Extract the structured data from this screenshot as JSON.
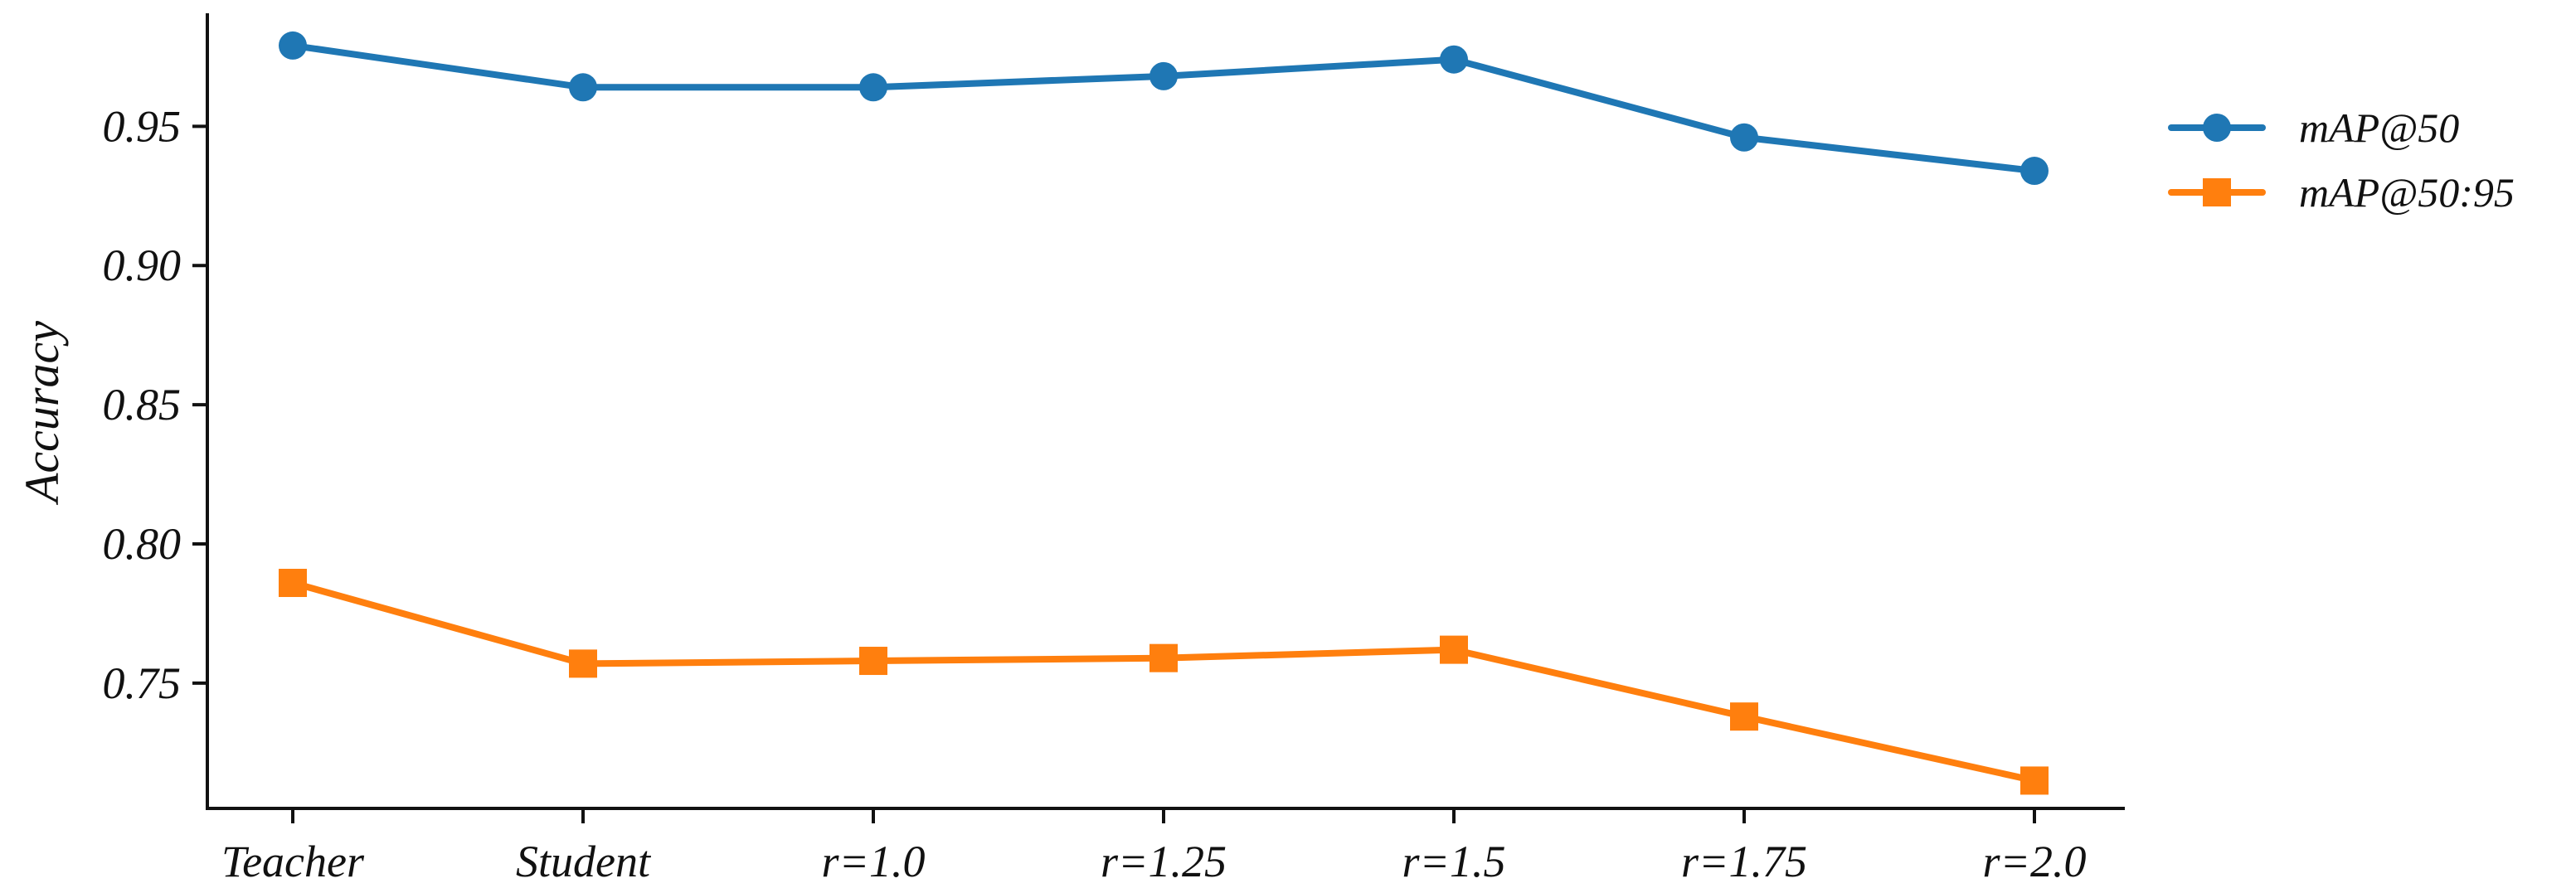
{
  "chart_data": {
    "type": "line",
    "title": "",
    "xlabel": "",
    "ylabel": "Accuracy",
    "categories": [
      "Teacher",
      "Student",
      "r=1.0",
      "r=1.25",
      "r=1.5",
      "r=1.75",
      "r=2.0"
    ],
    "yticks": [
      "0.75",
      "0.80",
      "0.85",
      "0.90",
      "0.95"
    ],
    "ylim": [
      0.705,
      0.99
    ],
    "grid": false,
    "legend_position": "top-right",
    "series": [
      {
        "name": "mAP@50",
        "marker": "circle",
        "color": "#1f77b4",
        "values": [
          0.979,
          0.964,
          0.964,
          0.968,
          0.974,
          0.946,
          0.934
        ]
      },
      {
        "name": "mAP@50:95",
        "marker": "square",
        "color": "#ff7f0e",
        "values": [
          0.786,
          0.757,
          0.758,
          0.759,
          0.762,
          0.738,
          0.715
        ]
      }
    ]
  }
}
